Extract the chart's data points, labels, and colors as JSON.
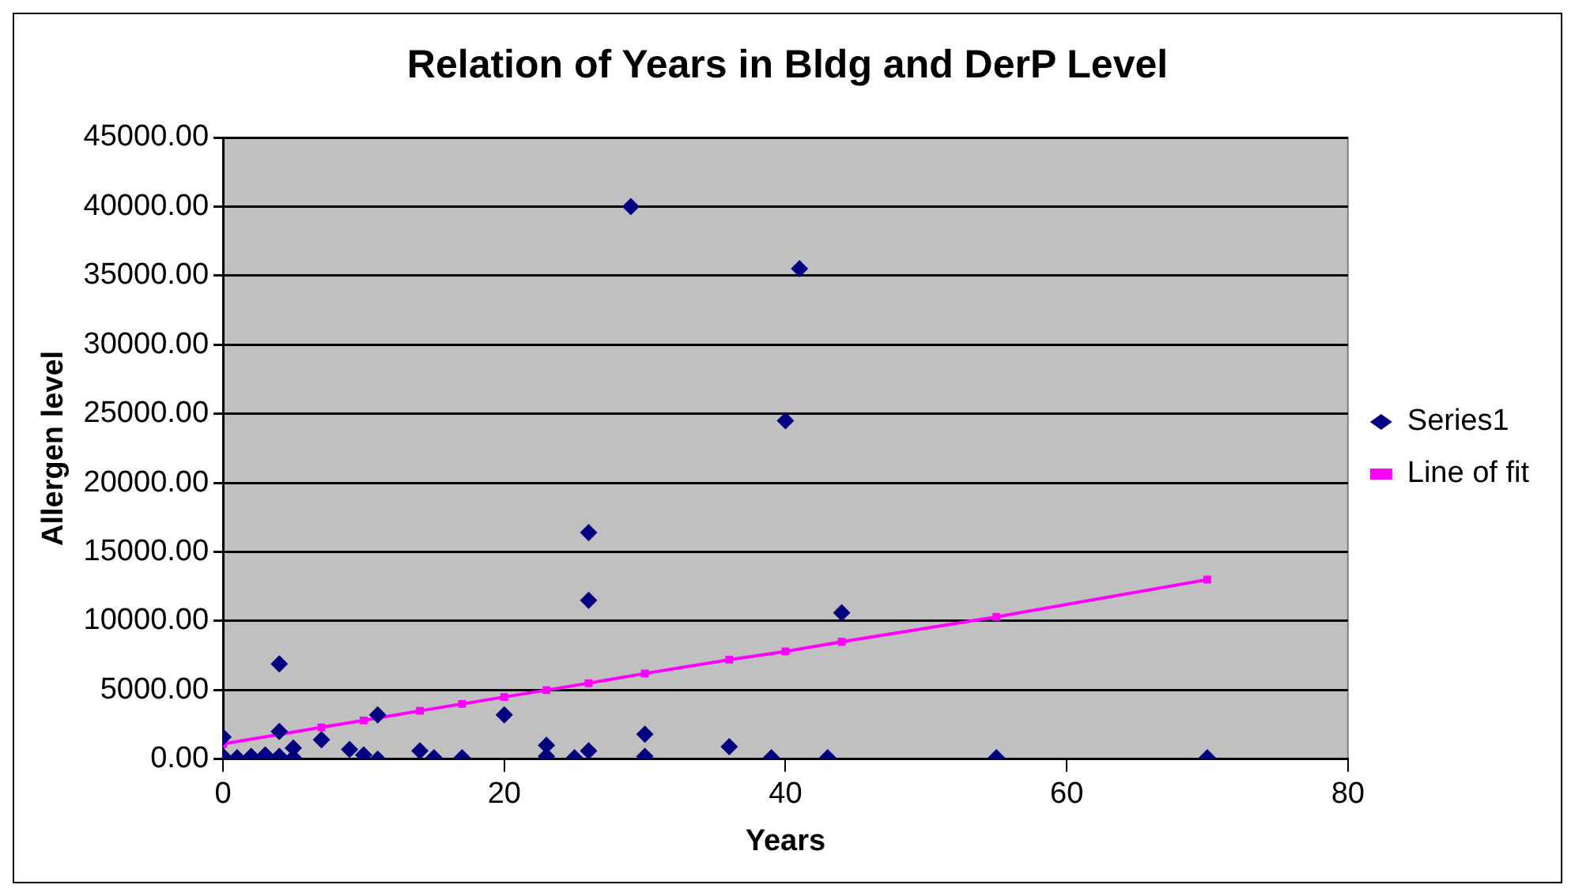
{
  "chart_data": {
    "type": "scatter",
    "title": "Relation of Years in Bldg and DerP Level",
    "xlabel": "Years",
    "ylabel": "Allergen level",
    "xlim": [
      0,
      80
    ],
    "xticks": [
      0,
      20,
      40,
      60,
      80
    ],
    "ylim": [
      0,
      45000
    ],
    "yticks": [
      {
        "value": 0,
        "label": "0.00"
      },
      {
        "value": 5000,
        "label": "5000.00"
      },
      {
        "value": 10000,
        "label": "10000.00"
      },
      {
        "value": 15000,
        "label": "15000.00"
      },
      {
        "value": 20000,
        "label": "20000.00"
      },
      {
        "value": 25000,
        "label": "25000.00"
      },
      {
        "value": 30000,
        "label": "30000.00"
      },
      {
        "value": 35000,
        "label": "35000.00"
      },
      {
        "value": 40000,
        "label": "40000.00"
      },
      {
        "value": 45000,
        "label": "45000.00"
      }
    ],
    "grid": "y",
    "legend": "right",
    "marker": "diamond",
    "series": [
      {
        "name": "Series1",
        "color": "#000080",
        "x": [
          0,
          0,
          1,
          2,
          3,
          4,
          4,
          4,
          5,
          5,
          7,
          9,
          10,
          11,
          11,
          14,
          15,
          17,
          20,
          23,
          23,
          25,
          26,
          26,
          26,
          29,
          30,
          30,
          36,
          39,
          40,
          41,
          43,
          44,
          55,
          70
        ],
        "values": [
          1600,
          200,
          100,
          200,
          300,
          6900,
          2000,
          200,
          800,
          100,
          1400,
          700,
          300,
          3200,
          0,
          600,
          100,
          100,
          3200,
          1000,
          200,
          100,
          600,
          16400,
          11500,
          40000,
          1800,
          200,
          900,
          100,
          24500,
          35500,
          100,
          10600,
          100,
          100
        ]
      },
      {
        "name": "Line of fit",
        "type": "line",
        "marker": "square",
        "line_style": "solid",
        "color": "#ff00ff",
        "x": [
          0,
          7,
          10,
          14,
          17,
          20,
          23,
          26,
          30,
          36,
          40,
          44,
          55,
          70
        ],
        "values": [
          1100,
          2300,
          2800,
          3500,
          4000,
          4500,
          5000,
          5500,
          6200,
          7200,
          7800,
          8500,
          10300,
          13000
        ]
      }
    ]
  }
}
